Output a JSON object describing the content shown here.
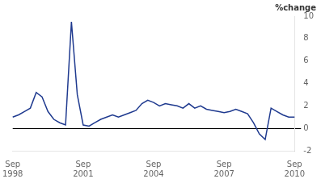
{
  "chart_data": {
    "type": "line",
    "ylabel": "%change",
    "categories": [
      "Sep\n1998",
      null,
      null,
      null,
      null,
      null,
      null,
      null,
      null,
      null,
      null,
      null,
      "Sep\n2001",
      null,
      null,
      null,
      null,
      null,
      null,
      null,
      null,
      null,
      null,
      null,
      "Sep\n2004",
      null,
      null,
      null,
      null,
      null,
      null,
      null,
      null,
      null,
      null,
      null,
      "Sep\n2007",
      null,
      null,
      null,
      null,
      null,
      null,
      null,
      null,
      null,
      null,
      null,
      "Sep\n2010"
    ],
    "values": [
      1.0,
      1.2,
      1.5,
      1.8,
      3.2,
      2.8,
      1.5,
      0.8,
      0.5,
      0.3,
      9.5,
      3.0,
      0.3,
      0.2,
      0.5,
      0.8,
      1.0,
      1.2,
      1.0,
      1.2,
      1.4,
      1.6,
      2.2,
      2.5,
      2.3,
      2.0,
      2.2,
      2.1,
      2.0,
      1.8,
      2.2,
      1.8,
      2.0,
      1.7,
      1.6,
      1.5,
      1.4,
      1.5,
      1.7,
      1.5,
      1.3,
      0.5,
      -0.5,
      -1.0,
      1.8,
      1.5,
      1.2,
      1.0,
      1.0
    ],
    "color": "#1f3a8f",
    "ylim": [
      -2,
      10
    ],
    "yticks": [
      -2,
      0,
      2,
      4,
      6,
      8,
      10
    ],
    "grid": false
  }
}
